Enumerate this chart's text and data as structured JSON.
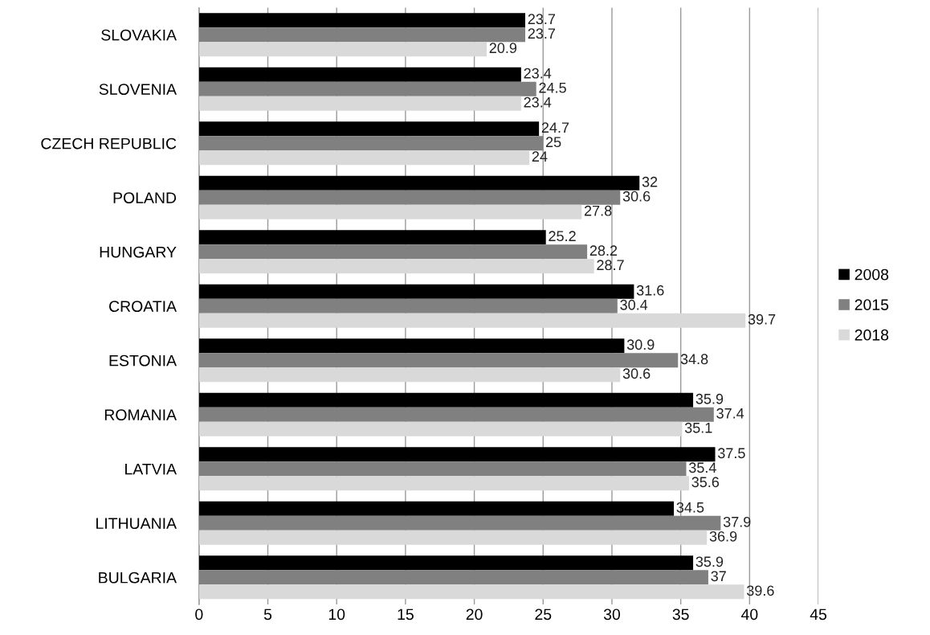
{
  "chart_data": {
    "type": "bar",
    "orientation": "horizontal",
    "categories": [
      "SLOVAKIA",
      "SLOVENIA",
      "CZECH REPUBLIC",
      "POLAND",
      "HUNGARY",
      "CROATIA",
      "ESTONIA",
      "ROMANIA",
      "LATVIA",
      "LITHUANIA",
      "BULGARIA"
    ],
    "series": [
      {
        "name": "2008",
        "color": "#000000",
        "values": [
          23.7,
          23.4,
          24.7,
          32,
          25.2,
          31.6,
          30.9,
          35.9,
          37.5,
          34.5,
          35.9
        ]
      },
      {
        "name": "2015",
        "color": "#808080",
        "values": [
          23.7,
          24.5,
          25,
          30.6,
          28.2,
          30.4,
          34.8,
          37.4,
          35.4,
          37.9,
          37
        ]
      },
      {
        "name": "2018",
        "color": "#d9d9d9",
        "values": [
          20.9,
          23.4,
          24,
          27.8,
          28.7,
          39.7,
          30.6,
          35.1,
          35.6,
          36.9,
          39.6
        ]
      }
    ],
    "xlim": [
      0,
      45
    ],
    "xticks": [
      0,
      5,
      10,
      15,
      20,
      25,
      30,
      35,
      40,
      45
    ],
    "grid": "x",
    "legend": "right",
    "data_labels": true
  }
}
